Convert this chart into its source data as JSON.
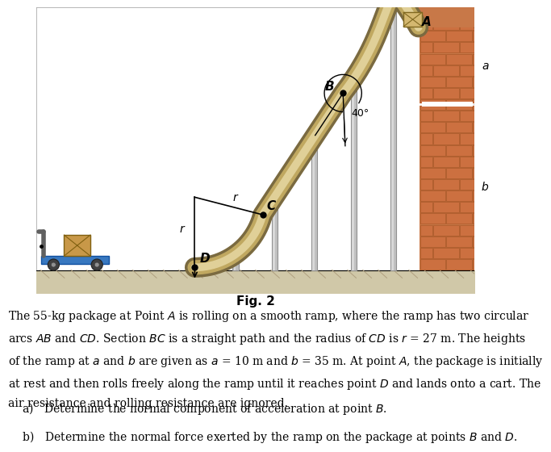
{
  "fig_title": "Fig. 2",
  "bg_color": "#ffffff",
  "ramp_outer_color": "#9a8c60",
  "ramp_mid_color": "#c8b878",
  "ramp_inner_color": "#e0d0a0",
  "ground_fill": "#d0c8a8",
  "ground_hatch_color": "#a09070",
  "wall_fill": "#c87848",
  "wall_edge": "#a85828",
  "support_fill": "#b0b0b0",
  "support_edge": "#888888",
  "cart_body_color": "#3878c0",
  "cart_edge": "#1050a0",
  "wheel_color": "#404040",
  "wheel_hub": "#909090",
  "box_fill": "#c89848",
  "box_edge": "#806010",
  "handle_color": "#606060",
  "point_color": "#000000",
  "label_A": "A",
  "label_B": "B",
  "label_C": "C",
  "label_D": "D",
  "label_r": "r",
  "label_angle": "40°",
  "label_a": "a",
  "label_b": "b",
  "text_body_line1": "The 55-kg package at Point ",
  "text_body": "The 55-kg package at Point A is rolling on a smooth ramp, where the ramp has two circular arcs AB and CD. Section BC is a straight path and the radius of CD is r = 27 m. The heights of the ramp at a and b are given as a = 10 m and b = 35 m. At point A, the package is initially at rest and then rolls freely along the ramp until it reaches point D and lands onto a cart. The air resistance and rolling resistance are ignored.",
  "text_qa": "a)  Determine the normal component of acceleration at point B.",
  "text_qb": "b)  Determine the normal force exerted by the ramp on the package at points B and D."
}
